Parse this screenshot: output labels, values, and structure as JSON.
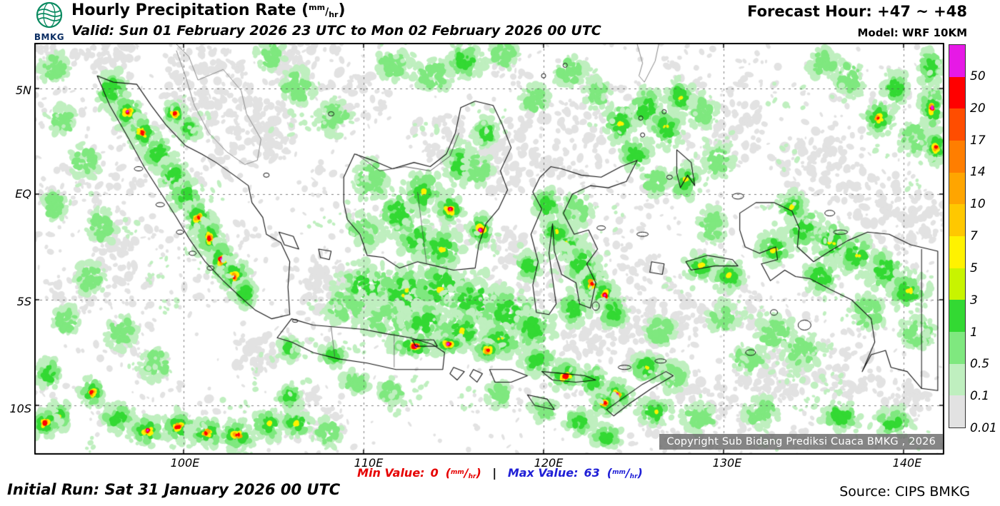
{
  "header": {
    "logo_text": "BMKG",
    "title": "Hourly Precipitation Rate ",
    "valid": "Valid: Sun 01 February 2026 23 UTC to Mon 02 February 2026 00 UTC",
    "forecast_hour": "Forecast Hour: +47 ~ +48",
    "model": "Model: WRF 10KM"
  },
  "unit": {
    "open": "(",
    "num": "mm",
    "slash": "/",
    "den": "hr",
    "close": ")"
  },
  "map": {
    "x_ticks": [
      "100E",
      "110E",
      "120E",
      "130E",
      "140E"
    ],
    "y_ticks": [
      "5N",
      "EQ",
      "5S",
      "10S"
    ],
    "copyright": "Copyright Sub Bidang Prediksi Cuaca BMKG , 2026"
  },
  "colorbar": {
    "labels": [
      "50",
      "20",
      "17",
      "14",
      "10",
      "7",
      "5",
      "3",
      "1",
      "0.5",
      "0.1",
      "0.01"
    ],
    "colors": [
      "#E619E6",
      "#FF0000",
      "#FF4D00",
      "#FF7E00",
      "#FFA500",
      "#FFC800",
      "#FFF200",
      "#C8F400",
      "#33D933",
      "#7FE87F",
      "#BFEFBF",
      "#E2E2E2"
    ]
  },
  "stats": {
    "min_label": "Min Value:",
    "min_value": "0",
    "separator": "|",
    "max_label": "Max Value:",
    "max_value": "63"
  },
  "footer": {
    "initial_run": "Initial Run: Sat 31 January 2026 00 UTC",
    "source": "Source: CIPS BMKG"
  },
  "theme": {
    "min_color": "#E60000",
    "max_color": "#1F1FD6",
    "coast_color": "#111111",
    "grid_color": "#555555"
  }
}
